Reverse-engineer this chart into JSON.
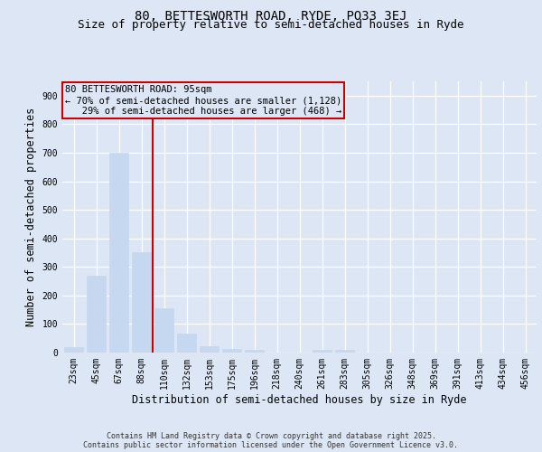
{
  "title_line1": "80, BETTESWORTH ROAD, RYDE, PO33 3EJ",
  "title_line2": "Size of property relative to semi-detached houses in Ryde",
  "xlabel": "Distribution of semi-detached houses by size in Ryde",
  "ylabel": "Number of semi-detached properties",
  "categories": [
    "23sqm",
    "45sqm",
    "67sqm",
    "88sqm",
    "110sqm",
    "132sqm",
    "153sqm",
    "175sqm",
    "196sqm",
    "218sqm",
    "240sqm",
    "261sqm",
    "283sqm",
    "305sqm",
    "326sqm",
    "348sqm",
    "369sqm",
    "391sqm",
    "413sqm",
    "434sqm",
    "456sqm"
  ],
  "values": [
    20,
    270,
    700,
    350,
    155,
    65,
    22,
    12,
    8,
    0,
    0,
    8,
    8,
    0,
    0,
    0,
    0,
    0,
    0,
    0,
    0
  ],
  "bar_color": "#c5d8f0",
  "bar_edgecolor": "#c5d8f0",
  "vline_color": "#cc0000",
  "vline_pos": 3.5,
  "annotation_line1": "80 BETTESWORTH ROAD: 95sqm",
  "annotation_line2": "← 70% of semi-detached houses are smaller (1,128)",
  "annotation_line3": "   29% of semi-detached houses are larger (468) →",
  "footer_text": "Contains HM Land Registry data © Crown copyright and database right 2025.\nContains public sector information licensed under the Open Government Licence v3.0.",
  "ylim": [
    0,
    950
  ],
  "yticks": [
    0,
    100,
    200,
    300,
    400,
    500,
    600,
    700,
    800,
    900
  ],
  "bg_color": "#dce6f5",
  "plot_bg_color": "#dce6f5",
  "grid_color": "#ffffff",
  "title_fontsize": 10,
  "subtitle_fontsize": 9,
  "tick_fontsize": 7,
  "label_fontsize": 8.5,
  "ann_fontsize": 7.5,
  "footer_fontsize": 6
}
